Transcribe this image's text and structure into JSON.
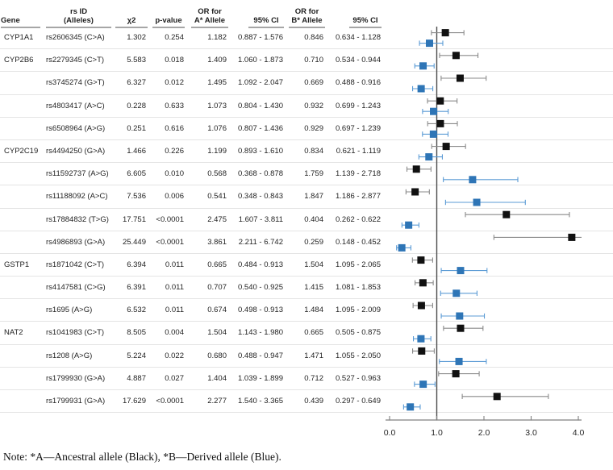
{
  "note": "Note: *A—Ancestral allele (Black), *B—Derived allele (Blue).",
  "table": {
    "headers": {
      "gene": "Gene",
      "rs_l1": "rs ID",
      "rs_l2": "(Alleles)",
      "chi2": "χ2",
      "p": "p-value",
      "ora_l1": "OR for",
      "ora_l2": "A* Allele",
      "ci_a": "95% CI",
      "orb_l1": "OR for",
      "orb_l2": "B* Allele",
      "ci_b": "95% CI"
    }
  },
  "chart_data": {
    "type": "forest",
    "x_ticks": [
      "0.0",
      "1.0",
      "2.0",
      "3.0",
      "4.0"
    ],
    "xlim": [
      0.0,
      4.0
    ],
    "reference_line_x": 1.0,
    "legend": [
      {
        "name": "A* Allele OR (Ancestral)",
        "color": "#111111"
      },
      {
        "name": "B* Allele OR (Derived)",
        "color": "#2e75b6"
      }
    ],
    "rows": [
      {
        "gene": "CYP1A1",
        "rs_id": "rs2606345 (C>A)",
        "chi2": "1.302",
        "p_value": "0.254",
        "or_a": 1.182,
        "ci_a": [
          0.887,
          1.576
        ],
        "or_b": 0.846,
        "ci_b": [
          0.634,
          1.128
        ]
      },
      {
        "gene": "CYP2B6",
        "rs_id": "rs2279345 (C>T)",
        "chi2": "5.583",
        "p_value": "0.018",
        "or_a": 1.409,
        "ci_a": [
          1.06,
          1.873
        ],
        "or_b": 0.71,
        "ci_b": [
          0.534,
          0.944
        ]
      },
      {
        "gene": "",
        "rs_id": "rs3745274 (G>T)",
        "chi2": "6.327",
        "p_value": "0.012",
        "or_a": 1.495,
        "ci_a": [
          1.092,
          2.047
        ],
        "or_b": 0.669,
        "ci_b": [
          0.488,
          0.916
        ]
      },
      {
        "gene": "",
        "rs_id": "rs4803417 (A>C)",
        "chi2": "0.228",
        "p_value": "0.633",
        "or_a": 1.073,
        "ci_a": [
          0.804,
          1.43
        ],
        "or_b": 0.932,
        "ci_b": [
          0.699,
          1.243
        ]
      },
      {
        "gene": "",
        "rs_id": "rs6508964 (A>G)",
        "chi2": "0.251",
        "p_value": "0.616",
        "or_a": 1.076,
        "ci_a": [
          0.807,
          1.436
        ],
        "or_b": 0.929,
        "ci_b": [
          0.697,
          1.239
        ]
      },
      {
        "gene": "CYP2C19",
        "rs_id": "rs4494250 (G>A)",
        "chi2": "1.466",
        "p_value": "0.226",
        "or_a": 1.199,
        "ci_a": [
          0.893,
          1.61
        ],
        "or_b": 0.834,
        "ci_b": [
          0.621,
          1.119
        ]
      },
      {
        "gene": "",
        "rs_id": "rs11592737 (A>G)",
        "chi2": "6.605",
        "p_value": "0.010",
        "or_a": 0.568,
        "ci_a": [
          0.368,
          0.878
        ],
        "or_b": 1.759,
        "ci_b": [
          1.139,
          2.718
        ]
      },
      {
        "gene": "",
        "rs_id": "rs11188092 (A>C)",
        "chi2": "7.536",
        "p_value": "0.006",
        "or_a": 0.541,
        "ci_a": [
          0.348,
          0.843
        ],
        "or_b": 1.847,
        "ci_b": [
          1.186,
          2.877
        ]
      },
      {
        "gene": "",
        "rs_id": "rs17884832 (T>G)",
        "chi2": "17.751",
        "p_value": "<0.0001",
        "or_a": 2.475,
        "ci_a": [
          1.607,
          3.811
        ],
        "or_b": 0.404,
        "ci_b": [
          0.262,
          0.622
        ]
      },
      {
        "gene": "",
        "rs_id": "rs4986893 (G>A)",
        "chi2": "25.449",
        "p_value": "<0.0001",
        "or_a": 3.861,
        "ci_a": [
          2.211,
          6.742
        ],
        "or_b": 0.259,
        "ci_b": [
          0.148,
          0.452
        ]
      },
      {
        "gene": "GSTP1",
        "rs_id": "rs1871042 (C>T)",
        "chi2": "6.394",
        "p_value": "0.011",
        "or_a": 0.665,
        "ci_a": [
          0.484,
          0.913
        ],
        "or_b": 1.504,
        "ci_b": [
          1.095,
          2.065
        ]
      },
      {
        "gene": "",
        "rs_id": "rs4147581 (C>G)",
        "chi2": "6.391",
        "p_value": "0.011",
        "or_a": 0.707,
        "ci_a": [
          0.54,
          0.925
        ],
        "or_b": 1.415,
        "ci_b": [
          1.081,
          1.853
        ]
      },
      {
        "gene": "",
        "rs_id": "rs1695 (A>G)",
        "chi2": "6.532",
        "p_value": "0.011",
        "or_a": 0.674,
        "ci_a": [
          0.498,
          0.913
        ],
        "or_b": 1.484,
        "ci_b": [
          1.095,
          2.009
        ]
      },
      {
        "gene": "NAT2",
        "rs_id": "rs1041983 (C>T)",
        "chi2": "8.505",
        "p_value": "0.004",
        "or_a": 1.504,
        "ci_a": [
          1.143,
          1.98
        ],
        "or_b": 0.665,
        "ci_b": [
          0.505,
          0.875
        ]
      },
      {
        "gene": "",
        "rs_id": "rs1208 (A>G)",
        "chi2": "5.224",
        "p_value": "0.022",
        "or_a": 0.68,
        "ci_a": [
          0.488,
          0.947
        ],
        "or_b": 1.471,
        "ci_b": [
          1.055,
          2.05
        ]
      },
      {
        "gene": "",
        "rs_id": "rs1799930 (G>A)",
        "chi2": "4.887",
        "p_value": "0.027",
        "or_a": 1.404,
        "ci_a": [
          1.039,
          1.899
        ],
        "or_b": 0.712,
        "ci_b": [
          0.527,
          0.963
        ]
      },
      {
        "gene": "",
        "rs_id": "rs1799931 (G>A)",
        "chi2": "17.629",
        "p_value": "<0.0001",
        "or_a": 2.277,
        "ci_a": [
          1.54,
          3.365
        ],
        "or_b": 0.439,
        "ci_b": [
          0.297,
          0.649
        ]
      }
    ]
  },
  "colors": {
    "marker_a": "#111111",
    "marker_b": "#2e75b6",
    "whisker_a": "#8a8a8a",
    "whisker_b": "#5b9bd5",
    "axis": "#808080",
    "reference_line": "#4d4d4d",
    "header_underline": "#a6a6a6",
    "row_separator": "#e4e4e4"
  }
}
